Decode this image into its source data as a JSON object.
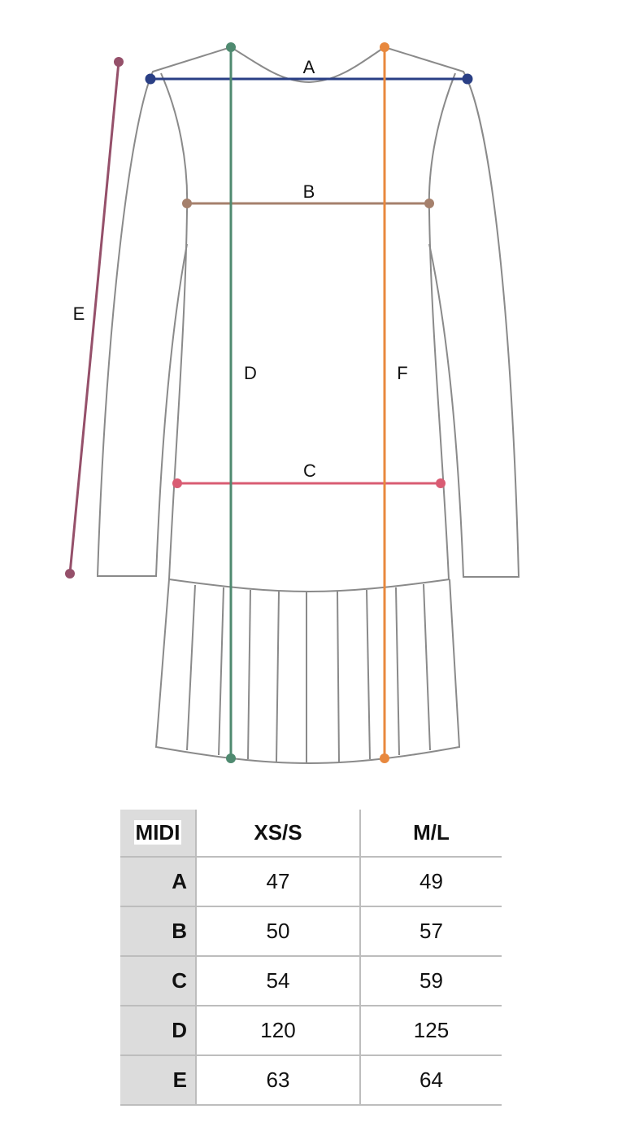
{
  "diagram": {
    "labels": {
      "A": "A",
      "B": "B",
      "C": "C",
      "D": "D",
      "E": "E",
      "F": "F"
    },
    "colors": {
      "A": "#2a3f85",
      "B": "#a5806c",
      "C": "#d95c73",
      "D": "#4f8a70",
      "E": "#95506a",
      "F": "#e8883e",
      "outline": "#8a8a8a"
    }
  },
  "table": {
    "header": [
      "MIDI",
      "XS/S",
      "M/L"
    ],
    "rows": [
      {
        "label": "A",
        "values": [
          "47",
          "49"
        ]
      },
      {
        "label": "B",
        "values": [
          "50",
          "57"
        ]
      },
      {
        "label": "C",
        "values": [
          "54",
          "59"
        ]
      },
      {
        "label": "D",
        "values": [
          "120",
          "125"
        ]
      },
      {
        "label": "E",
        "values": [
          "63",
          "64"
        ]
      }
    ]
  }
}
